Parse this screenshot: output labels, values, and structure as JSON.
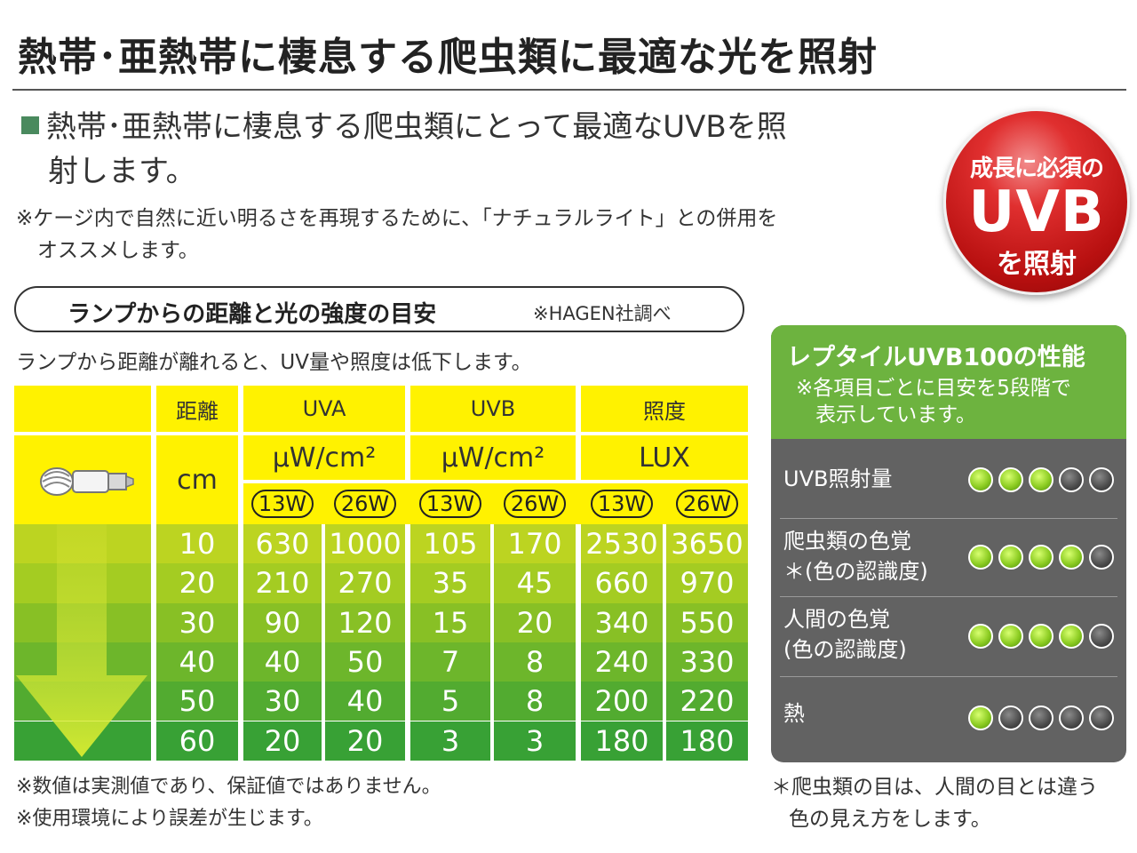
{
  "title": "熱帯･亜熱帯に棲息する爬虫類に最適な光を照射",
  "lead": {
    "line1": "熱帯･亜熱帯に棲息する爬虫類にとって最適なUVBを照",
    "line2": "射します。"
  },
  "note_top": {
    "line1": "※ケージ内で自然に近い明るさを再現するために、「ナチュラルライト」との併用を",
    "line2": "オススメします。"
  },
  "badge": {
    "line1": "成長に必須の",
    "line2": "UVB",
    "line3": "を照射"
  },
  "section": {
    "title": "ランプからの距離と光の強度の目安",
    "source": "※HAGEN社調べ"
  },
  "intro": "ランプから距離が離れると、UV量や照度は低下します。",
  "table": {
    "headers": {
      "distance": "距離",
      "uva": "UVA",
      "uvb": "UVB",
      "lux": "照度"
    },
    "units": {
      "distance": "cm",
      "uva": "μW/cm²",
      "uvb": "μW/cm²",
      "lux": "LUX"
    },
    "watts": [
      "13W",
      "26W",
      "13W",
      "26W",
      "13W",
      "26W"
    ],
    "rows": [
      [
        "10",
        "630",
        "1000",
        "105",
        "170",
        "2530",
        "3650"
      ],
      [
        "20",
        "210",
        "270",
        "35",
        "45",
        "660",
        "970"
      ],
      [
        "30",
        "90",
        "120",
        "15",
        "20",
        "340",
        "550"
      ],
      [
        "40",
        "40",
        "50",
        "7",
        "8",
        "240",
        "330"
      ],
      [
        "50",
        "30",
        "40",
        "5",
        "8",
        "200",
        "220"
      ],
      [
        "60",
        "20",
        "20",
        "3",
        "3",
        "180",
        "180"
      ]
    ],
    "row_colors": [
      "#bcd421",
      "#a4cc22",
      "#88c025",
      "#6db62b",
      "#52ab30",
      "#38a135"
    ],
    "yellow": "#fff200"
  },
  "notes_bottom": {
    "line1": "※数値は実測値であり、保証値ではありません。",
    "line2": "※使用環境により誤差が生じます。"
  },
  "performance": {
    "title": "レプタイルUVB100の性能",
    "note_line1": "※各項目ごとに目安を5段階で",
    "note_line2": "表示しています。",
    "items": [
      {
        "label_line1": "UVB照射量",
        "label_line2": "",
        "level": 3
      },
      {
        "label_line1": "爬虫類の色覚",
        "label_line2": "＊(色の認識度)",
        "level": 4
      },
      {
        "label_line1": "人間の色覚",
        "label_line2": "(色の認識度)",
        "level": 4
      },
      {
        "label_line1": "熱",
        "label_line2": "",
        "level": 1
      }
    ],
    "max_level": 5,
    "header_color": "#6db33f",
    "panel_color": "#626262"
  },
  "perf_note": {
    "line1": "＊爬虫類の目は、人間の目とは違う",
    "line2": "色の見え方をします。"
  }
}
